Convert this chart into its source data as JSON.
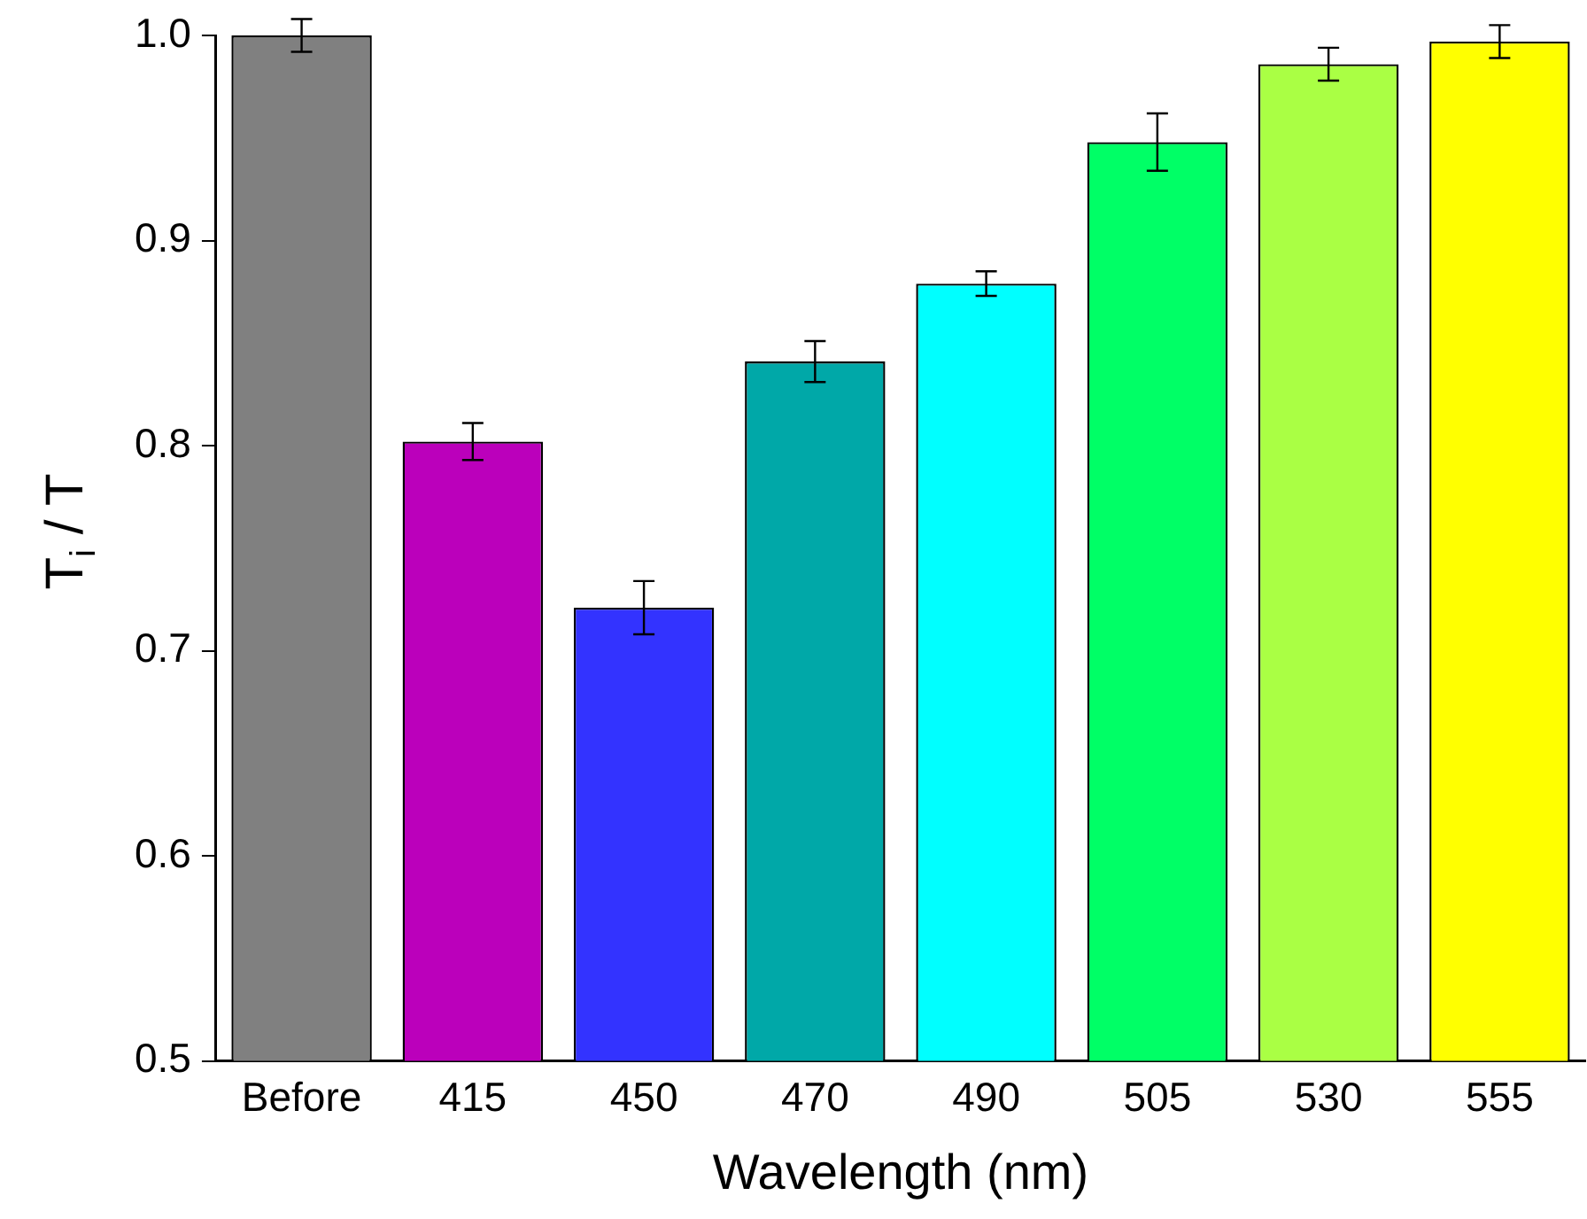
{
  "chart_data": {
    "type": "bar",
    "xlabel": "Wavelength (nm)",
    "ylabel": "T$_{i}$ / T",
    "categories": [
      "Before",
      "415",
      "450",
      "470",
      "490",
      "505",
      "530",
      "555"
    ],
    "values": [
      1.0,
      0.802,
      0.721,
      0.841,
      0.879,
      0.948,
      0.986,
      0.997
    ],
    "errors": [
      0.008,
      0.009,
      0.013,
      0.01,
      0.006,
      0.014,
      0.008,
      0.008
    ],
    "colors": [
      "#808080",
      "#bb00bb",
      "#3333ff",
      "#00a8a8",
      "#00ffff",
      "#00ff66",
      "#aaff44",
      "#ffff00"
    ],
    "ylim": [
      0.5,
      1.0
    ],
    "yticks": [
      0.5,
      0.6,
      0.7,
      0.8,
      0.9,
      {
        "value": 1,
        "label": "1.0"
      }
    ],
    "grid": false,
    "legend": false
  }
}
